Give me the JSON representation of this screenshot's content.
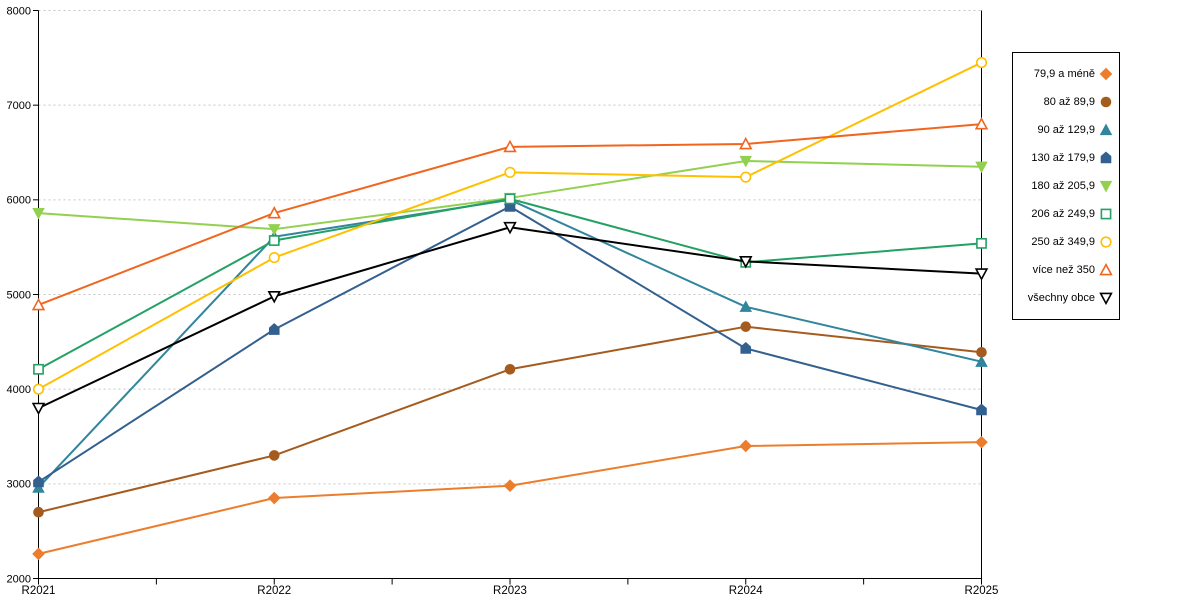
{
  "page": {
    "background": "#ffffff"
  },
  "chart_data": {
    "type": "line",
    "title": "",
    "xlabel": "",
    "ylabel": "",
    "categories": [
      "R2021",
      "R2022",
      "R2023",
      "R2024",
      "R2025"
    ],
    "yticks": [
      "2000",
      "3000",
      "4000",
      "5000",
      "6000",
      "7000",
      "8000"
    ],
    "ylim": [
      2000,
      8000
    ],
    "grid": "horizontal dashed gray",
    "grid_color": "#c6c6c6",
    "axis_color": "#000000",
    "legend_position": "right outside, boxed",
    "series": [
      {
        "name": "79,9 a méně",
        "color": "#EC7D2D",
        "marker": "diamond",
        "fill": "solid",
        "values": [
          2260,
          2850,
          2980,
          3400,
          3440
        ]
      },
      {
        "name": "80 až 89,9",
        "color": "#A55B1E",
        "marker": "circle",
        "fill": "solid",
        "values": [
          2700,
          3300,
          4210,
          4660,
          4390
        ]
      },
      {
        "name": "90 až 129,9",
        "color": "#31859C",
        "marker": "triangle-up",
        "fill": "solid",
        "values": [
          2960,
          5610,
          6000,
          4870,
          4290
        ]
      },
      {
        "name": "130 až 179,9",
        "color": "#33608F",
        "marker": "pentagon",
        "fill": "solid",
        "values": [
          3020,
          4630,
          5930,
          4430,
          3780
        ]
      },
      {
        "name": "180 až 205,9",
        "color": "#92D050",
        "marker": "triangle-down",
        "fill": "solid",
        "values": [
          5860,
          5690,
          6020,
          6410,
          6350
        ]
      },
      {
        "name": "206 až 249,9",
        "color": "#23A164",
        "marker": "square",
        "fill": "open",
        "values": [
          4210,
          5570,
          6010,
          5340,
          5540
        ]
      },
      {
        "name": "250 až 349,9",
        "color": "#FFC000",
        "marker": "circle",
        "fill": "open",
        "values": [
          4000,
          5390,
          6290,
          6240,
          7450
        ]
      },
      {
        "name": "více než 350",
        "color": "#F1661F",
        "marker": "triangle-up",
        "fill": "open",
        "values": [
          4890,
          5860,
          6560,
          6590,
          6800
        ]
      },
      {
        "name": "všechny obce",
        "color": "#000000",
        "marker": "triangle-down",
        "fill": "open",
        "values": [
          3800,
          4980,
          5710,
          5350,
          5220
        ]
      }
    ]
  }
}
